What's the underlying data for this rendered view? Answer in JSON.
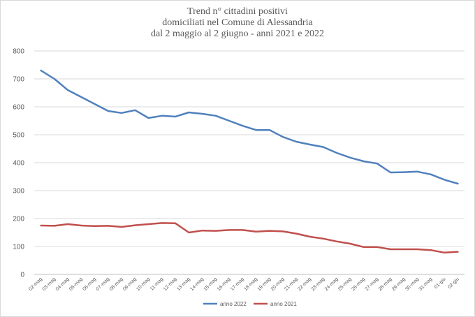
{
  "chart_data": {
    "type": "line",
    "title": [
      "Trend n° cittadini positivi",
      "domiciliati nel Comune di Alessandria",
      "dal 2 maggio al 2 giugno - anni 2021 e 2022"
    ],
    "xlabel": "",
    "ylabel": "",
    "ylim": [
      0,
      800
    ],
    "yticks": [
      "0",
      "100",
      "200",
      "300",
      "400",
      "500",
      "600",
      "700",
      "800"
    ],
    "grid": true,
    "legend_position": "bottom",
    "categories": [
      "02-mag",
      "03-mag",
      "04-mag",
      "05-mag",
      "06-mag",
      "07-mag",
      "08-mag",
      "09-mag",
      "10-mag",
      "11-mag",
      "12-mag",
      "13-mag",
      "14-mag",
      "15-mag",
      "16-mag",
      "17-mag",
      "18-mag",
      "19-mag",
      "20-mag",
      "21-mag",
      "22-mag",
      "23-mag",
      "24-mag",
      "25-mag",
      "26-mag",
      "27-mag",
      "28-mag",
      "29-mag",
      "30-mag",
      "31-mag",
      "01-giu",
      "02-giu"
    ],
    "series": [
      {
        "name": "anno 2022",
        "color": "#4f81bd",
        "values": [
          730,
          700,
          660,
          635,
          610,
          585,
          578,
          588,
          560,
          568,
          565,
          580,
          575,
          568,
          550,
          532,
          517,
          517,
          492,
          475,
          465,
          456,
          435,
          418,
          405,
          397,
          365,
          366,
          368,
          358,
          339,
          325
        ]
      },
      {
        "name": "anno 2021",
        "color": "#c0504d",
        "values": [
          175,
          174,
          180,
          175,
          173,
          174,
          170,
          176,
          180,
          184,
          183,
          150,
          157,
          156,
          159,
          159,
          153,
          156,
          154,
          146,
          135,
          128,
          118,
          110,
          98,
          98,
          90,
          90,
          90,
          87,
          78,
          81
        ]
      }
    ]
  }
}
